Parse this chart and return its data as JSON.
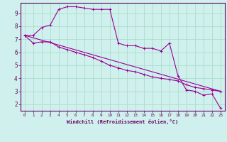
{
  "xlabel": "Windchill (Refroidissement éolien,°C)",
  "bg_color": "#cff0ec",
  "grid_color": "#aaddcc",
  "line_color": "#990099",
  "xlim": [
    -0.5,
    23.5
  ],
  "ylim": [
    1.5,
    9.8
  ],
  "xticks": [
    0,
    1,
    2,
    3,
    4,
    5,
    6,
    7,
    8,
    9,
    10,
    11,
    12,
    13,
    14,
    15,
    16,
    17,
    18,
    19,
    20,
    21,
    22,
    23
  ],
  "yticks": [
    2,
    3,
    4,
    5,
    6,
    7,
    8,
    9
  ],
  "curve1_x": [
    0,
    1,
    2,
    3,
    4,
    5,
    6,
    7,
    8,
    9,
    10,
    11,
    12,
    13,
    14,
    15,
    16,
    17,
    18,
    19,
    20,
    21,
    22,
    23
  ],
  "curve1_y": [
    7.3,
    7.3,
    7.9,
    8.1,
    9.3,
    9.5,
    9.5,
    9.4,
    9.3,
    9.3,
    9.3,
    6.7,
    6.5,
    6.5,
    6.3,
    6.3,
    6.1,
    6.7,
    4.2,
    3.1,
    3.0,
    2.7,
    2.8,
    1.7
  ],
  "curve2_x": [
    0,
    1,
    2,
    3,
    4,
    5,
    6,
    7,
    8,
    9,
    10,
    11,
    12,
    13,
    14,
    15,
    16,
    17,
    18,
    19,
    20,
    21,
    22,
    23
  ],
  "curve2_y": [
    7.3,
    6.7,
    6.8,
    6.8,
    6.4,
    6.2,
    6.0,
    5.8,
    5.6,
    5.3,
    5.0,
    4.8,
    4.6,
    4.5,
    4.3,
    4.1,
    4.0,
    3.9,
    3.8,
    3.5,
    3.3,
    3.2,
    3.1,
    3.0
  ],
  "trend_x": [
    0,
    23
  ],
  "trend_y": [
    7.3,
    3.0
  ],
  "spine_color": "#660066",
  "label_color": "#660066"
}
